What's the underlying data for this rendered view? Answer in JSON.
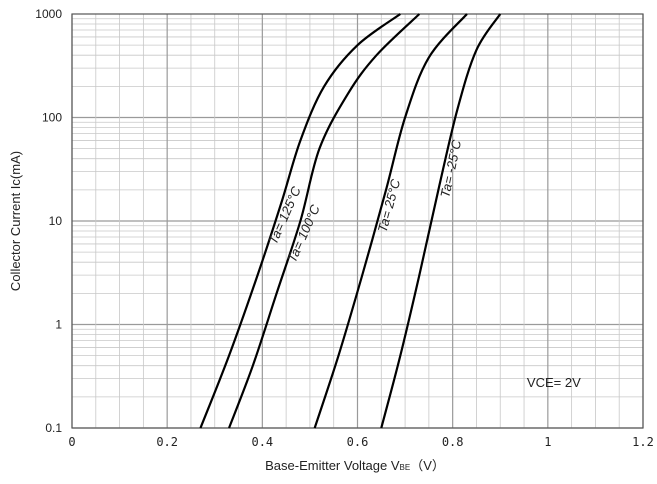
{
  "chart_data": {
    "type": "line",
    "title": "",
    "xlabel": "Base-Emitter Voltage  V",
    "xlabel_subscript": "BE",
    "xlabel_unit": "（V）",
    "ylabel": "Collector Current   Ic(mA)",
    "xlim": [
      0,
      1.2
    ],
    "ylim": [
      0.1,
      1000
    ],
    "y_scale": "log",
    "x_ticks": [
      0,
      0.2,
      0.4,
      0.6,
      0.8,
      1,
      1.2
    ],
    "x_tick_labels": [
      "0",
      "0.2",
      "0.4",
      "0.6",
      "0.8",
      "1",
      "1.2"
    ],
    "y_ticks": [
      0.1,
      1,
      10,
      100,
      1000
    ],
    "y_tick_labels": [
      "0.1",
      "1",
      "10",
      "100",
      "1000"
    ],
    "grid": true,
    "line_color": "#000000",
    "grid_color": "#c8c8c8",
    "annotation": "VCE= 2V",
    "series": [
      {
        "name": "Ta= 125°C",
        "points": [
          [
            0.27,
            0.1
          ],
          [
            0.33,
            0.5
          ],
          [
            0.39,
            3
          ],
          [
            0.44,
            15
          ],
          [
            0.48,
            60
          ],
          [
            0.53,
            200
          ],
          [
            0.6,
            500
          ],
          [
            0.69,
            1000
          ]
        ]
      },
      {
        "name": "Ta= 100°C",
        "points": [
          [
            0.33,
            0.1
          ],
          [
            0.38,
            0.4
          ],
          [
            0.43,
            2
          ],
          [
            0.48,
            10
          ],
          [
            0.52,
            50
          ],
          [
            0.58,
            170
          ],
          [
            0.64,
            400
          ],
          [
            0.73,
            1000
          ]
        ]
      },
      {
        "name": "Ta= 25°C",
        "points": [
          [
            0.51,
            0.1
          ],
          [
            0.56,
            0.5
          ],
          [
            0.61,
            3
          ],
          [
            0.66,
            20
          ],
          [
            0.7,
            100
          ],
          [
            0.75,
            380
          ],
          [
            0.83,
            1000
          ]
        ]
      },
      {
        "name": "Ta= -25°C",
        "points": [
          [
            0.65,
            0.1
          ],
          [
            0.69,
            0.5
          ],
          [
            0.73,
            3
          ],
          [
            0.77,
            20
          ],
          [
            0.81,
            120
          ],
          [
            0.85,
            450
          ],
          [
            0.9,
            1000
          ]
        ]
      }
    ]
  }
}
